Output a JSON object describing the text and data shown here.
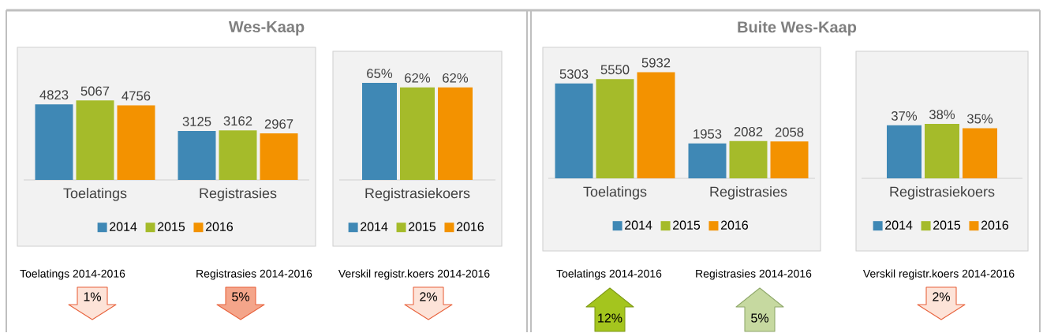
{
  "chart_data": [
    {
      "type": "bar",
      "title": "Wes-Kaap",
      "categories": [
        "Toelatings",
        "Registrasies"
      ],
      "data_labels": true,
      "legend": "bottom",
      "series": [
        {
          "name": "2014",
          "color": "#3f88b5",
          "values": [
            4823,
            3125
          ]
        },
        {
          "name": "2015",
          "color": "#a5bb2a",
          "values": [
            5067,
            3162
          ]
        },
        {
          "name": "2016",
          "color": "#f39200",
          "values": [
            4756,
            2967
          ]
        }
      ],
      "annotations": [
        "Toelatings 2014-2016",
        "1%",
        "Registrasies 2014-2016",
        "5%"
      ]
    },
    {
      "type": "bar",
      "categories": [
        "Registrasiekoers"
      ],
      "legend": "bottom",
      "series": [
        {
          "name": "2014",
          "color": "#3f88b5",
          "values": [
            65
          ],
          "value_labels": [
            "65%"
          ]
        },
        {
          "name": "2015",
          "color": "#a5bb2a",
          "values": [
            62
          ],
          "value_labels": [
            "62%"
          ]
        },
        {
          "name": "2016",
          "color": "#f39200",
          "values": [
            62
          ],
          "value_labels": [
            "62%"
          ]
        }
      ],
      "annotations": [
        "Verskil registr.koers 2014-2016",
        "2%"
      ]
    },
    {
      "type": "bar",
      "title": "Buite Wes-Kaap",
      "categories": [
        "Toelatings",
        "Registrasies"
      ],
      "data_labels": true,
      "legend": "bottom",
      "series": [
        {
          "name": "2014",
          "color": "#3f88b5",
          "values": [
            5303,
            1953
          ]
        },
        {
          "name": "2015",
          "color": "#a5bb2a",
          "values": [
            5550,
            2082
          ]
        },
        {
          "name": "2016",
          "color": "#f39200",
          "values": [
            5932,
            2058
          ]
        }
      ],
      "annotations": [
        "Toelatings 2014-2016",
        "12%",
        "Registrasies 2014-2016",
        "5%"
      ]
    },
    {
      "type": "bar",
      "categories": [
        "Registrasiekoers"
      ],
      "legend": "bottom",
      "series": [
        {
          "name": "2014",
          "color": "#3f88b5",
          "values": [
            37
          ],
          "value_labels": [
            "37%"
          ]
        },
        {
          "name": "2015",
          "color": "#a5bb2a",
          "values": [
            38
          ],
          "value_labels": [
            "38%"
          ]
        },
        {
          "name": "2016",
          "color": "#f39200",
          "values": [
            35
          ],
          "value_labels": [
            "35%"
          ]
        }
      ],
      "annotations": [
        "Verskil registr.koers 2014-2016",
        "2%"
      ]
    }
  ]
}
